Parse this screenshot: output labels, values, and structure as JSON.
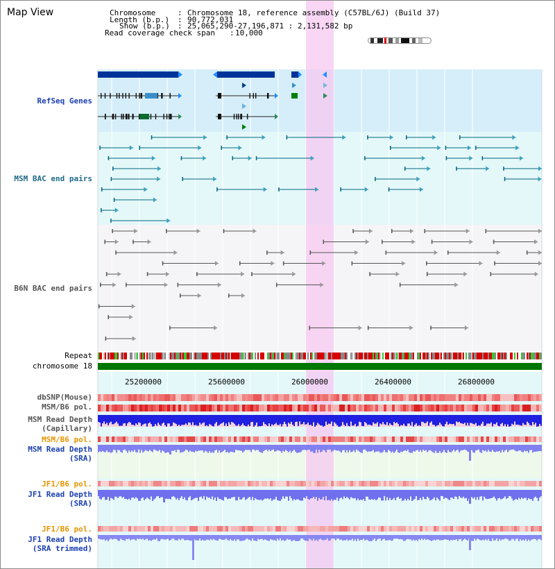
{
  "page_title": "Map View",
  "info": {
    "chromosome_key": "Chromosome",
    "chromosome_val": "Chromosome 18, reference assembly (C57BL/6J) (Build 37)",
    "length_key": "Length (b.p.)",
    "length_val": "90,772,031",
    "show_key": "Show (b.p.)",
    "show_val": "25,065,290-27,196,871 : 2,131,582 bp",
    "coverage_key": "Read coverage check span",
    "coverage_val": "10,000"
  },
  "tracks": {
    "refseq": "RefSeq Genes",
    "msm_bac": "MSM BAC end pairs",
    "b6n_bac": "B6N BAC end pairs",
    "repeat": "Repeat",
    "chromosome": "chromosome 18",
    "dbsnp": "dbSNP(Mouse)",
    "msm_b6_pol_1": "MSM/B6 pol.",
    "msm_depth_cap_1": "MSM Read Depth",
    "msm_depth_cap_2": "(Capillary)",
    "msm_b6_pol_2": "MSM/B6 pol.",
    "msm_depth_sra_1": "MSM Read Depth",
    "msm_depth_sra_2": "(SRA)",
    "jf1_b6_pol_1": "JF1/B6 pol.",
    "jf1_depth_sra_1": "JF1 Read Depth",
    "jf1_depth_sra_2": "(SRA)",
    "jf1_b6_pol_2": "JF1/B6 pol.",
    "jf1_depth_trim_1": "JF1 Read Depth",
    "jf1_depth_trim_2": "(SRA trimmed)"
  },
  "axis_ticks": [
    "25200000",
    "25600000",
    "26000000",
    "26400000",
    "26800000"
  ],
  "colors": {
    "refseq_blue": "#003399",
    "msm_teal": "#006680",
    "orange_label": "#e69500",
    "highlight": "#f5c8f0",
    "chrom_green": "#007700"
  }
}
